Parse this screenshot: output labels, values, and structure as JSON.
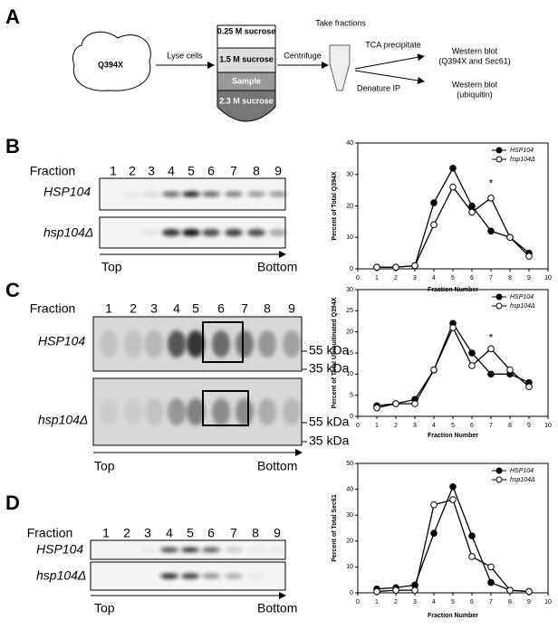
{
  "panels": [
    "A",
    "B",
    "C",
    "D"
  ],
  "schematic": {
    "cell": "Q394X",
    "step1": "Lyse cells",
    "layers": [
      "0.25 M sucrose",
      "1.5 M sucrose",
      "Sample",
      "2.3 M sucrose"
    ],
    "step2": "Centrifuge",
    "step3": "Take fractions",
    "route1": "TCA precipitate",
    "route2": "Denature IP",
    "result1": [
      "Western blot",
      "(Q394X and Sec61)"
    ],
    "result2": [
      "Western blot",
      "(ubiquitin)"
    ]
  },
  "blots": [
    {
      "fraction_label": "Fraction",
      "fractions": [
        "1",
        "2",
        "3",
        "4",
        "5",
        "6",
        "7",
        "8",
        "9"
      ],
      "lanes": [
        "HSP104",
        "hsp104Δ"
      ],
      "top": "Top",
      "bottom": "Bottom"
    },
    {
      "fraction_label": "Fraction",
      "fractions": [
        "1",
        "2",
        "3",
        "4",
        "5",
        "6",
        "7",
        "8",
        "9"
      ],
      "lanes": [
        "HSP104",
        "hsp104Δ"
      ],
      "top": "Top",
      "bottom": "Bottom",
      "markers": [
        "55 kDa",
        "35 kDa"
      ]
    },
    {
      "fraction_label": "Fraction",
      "fractions": [
        "1",
        "2",
        "3",
        "4",
        "5",
        "6",
        "7",
        "8",
        "9"
      ],
      "lanes": [
        "HSP104",
        "hsp104Δ"
      ],
      "top": "Top",
      "bottom": "Bottom"
    }
  ],
  "chart_data": [
    {
      "type": "line",
      "xlabel": "Fraction Number",
      "ylabel": "Percent of Total Q394X",
      "x": [
        1,
        2,
        3,
        4,
        5,
        6,
        7,
        8,
        9
      ],
      "xlim": [
        0,
        10
      ],
      "xticks": [
        0,
        1,
        2,
        3,
        4,
        5,
        6,
        7,
        8,
        9,
        10
      ],
      "ylim": [
        0,
        40
      ],
      "yticks": [
        0,
        10,
        20,
        30,
        40
      ],
      "legend": "upper right",
      "series": [
        {
          "name": "HSP104",
          "color": "#000",
          "marker": "filled",
          "values": [
            0.5,
            0.5,
            1,
            21,
            32,
            20,
            12,
            10,
            5
          ]
        },
        {
          "name": "hsp104Δ",
          "color": "#000",
          "marker": "open",
          "values": [
            0.5,
            0.5,
            1,
            14,
            26,
            18,
            22.5,
            10,
            4
          ]
        }
      ],
      "annotations": [
        {
          "text": "*",
          "x": 7,
          "y": 27
        }
      ]
    },
    {
      "type": "line",
      "xlabel": "Fraction Number",
      "ylabel": "Percent of Total Ubiquitinated Q394X",
      "x": [
        1,
        2,
        3,
        4,
        5,
        6,
        7,
        8,
        9
      ],
      "xlim": [
        0,
        10
      ],
      "xticks": [
        0,
        1,
        2,
        3,
        4,
        5,
        6,
        7,
        8,
        9,
        10
      ],
      "ylim": [
        0,
        30
      ],
      "yticks": [
        0,
        5,
        10,
        15,
        20,
        25,
        30
      ],
      "legend": "upper right",
      "series": [
        {
          "name": "HSP104",
          "color": "#000",
          "marker": "filled",
          "values": [
            2.5,
            3,
            4,
            11,
            22,
            15,
            10,
            10,
            8
          ]
        },
        {
          "name": "hsp104Δ",
          "color": "#000",
          "marker": "open",
          "values": [
            2,
            3,
            3,
            11,
            21,
            12,
            16,
            11,
            7
          ]
        }
      ],
      "annotations": [
        {
          "text": "*",
          "x": 7,
          "y": 18.5
        }
      ]
    },
    {
      "type": "line",
      "xlabel": "Fraction Number",
      "ylabel": "Percent of Total Sec61",
      "x": [
        1,
        2,
        3,
        4,
        5,
        6,
        7,
        8,
        9
      ],
      "xlim": [
        0,
        10
      ],
      "xticks": [
        0,
        1,
        2,
        3,
        4,
        5,
        6,
        7,
        8,
        9,
        10
      ],
      "ylim": [
        0,
        50
      ],
      "yticks": [
        0,
        10,
        20,
        30,
        40,
        50
      ],
      "legend": "upper right",
      "series": [
        {
          "name": "HSP104",
          "color": "#000",
          "marker": "filled",
          "values": [
            1.5,
            2,
            3,
            23,
            41,
            22,
            4,
            1,
            0.5
          ]
        },
        {
          "name": "hsp104Δ",
          "color": "#000",
          "marker": "open",
          "values": [
            0.5,
            1,
            1,
            34,
            36,
            14,
            10,
            1,
            0.5
          ]
        }
      ],
      "annotations": []
    }
  ]
}
